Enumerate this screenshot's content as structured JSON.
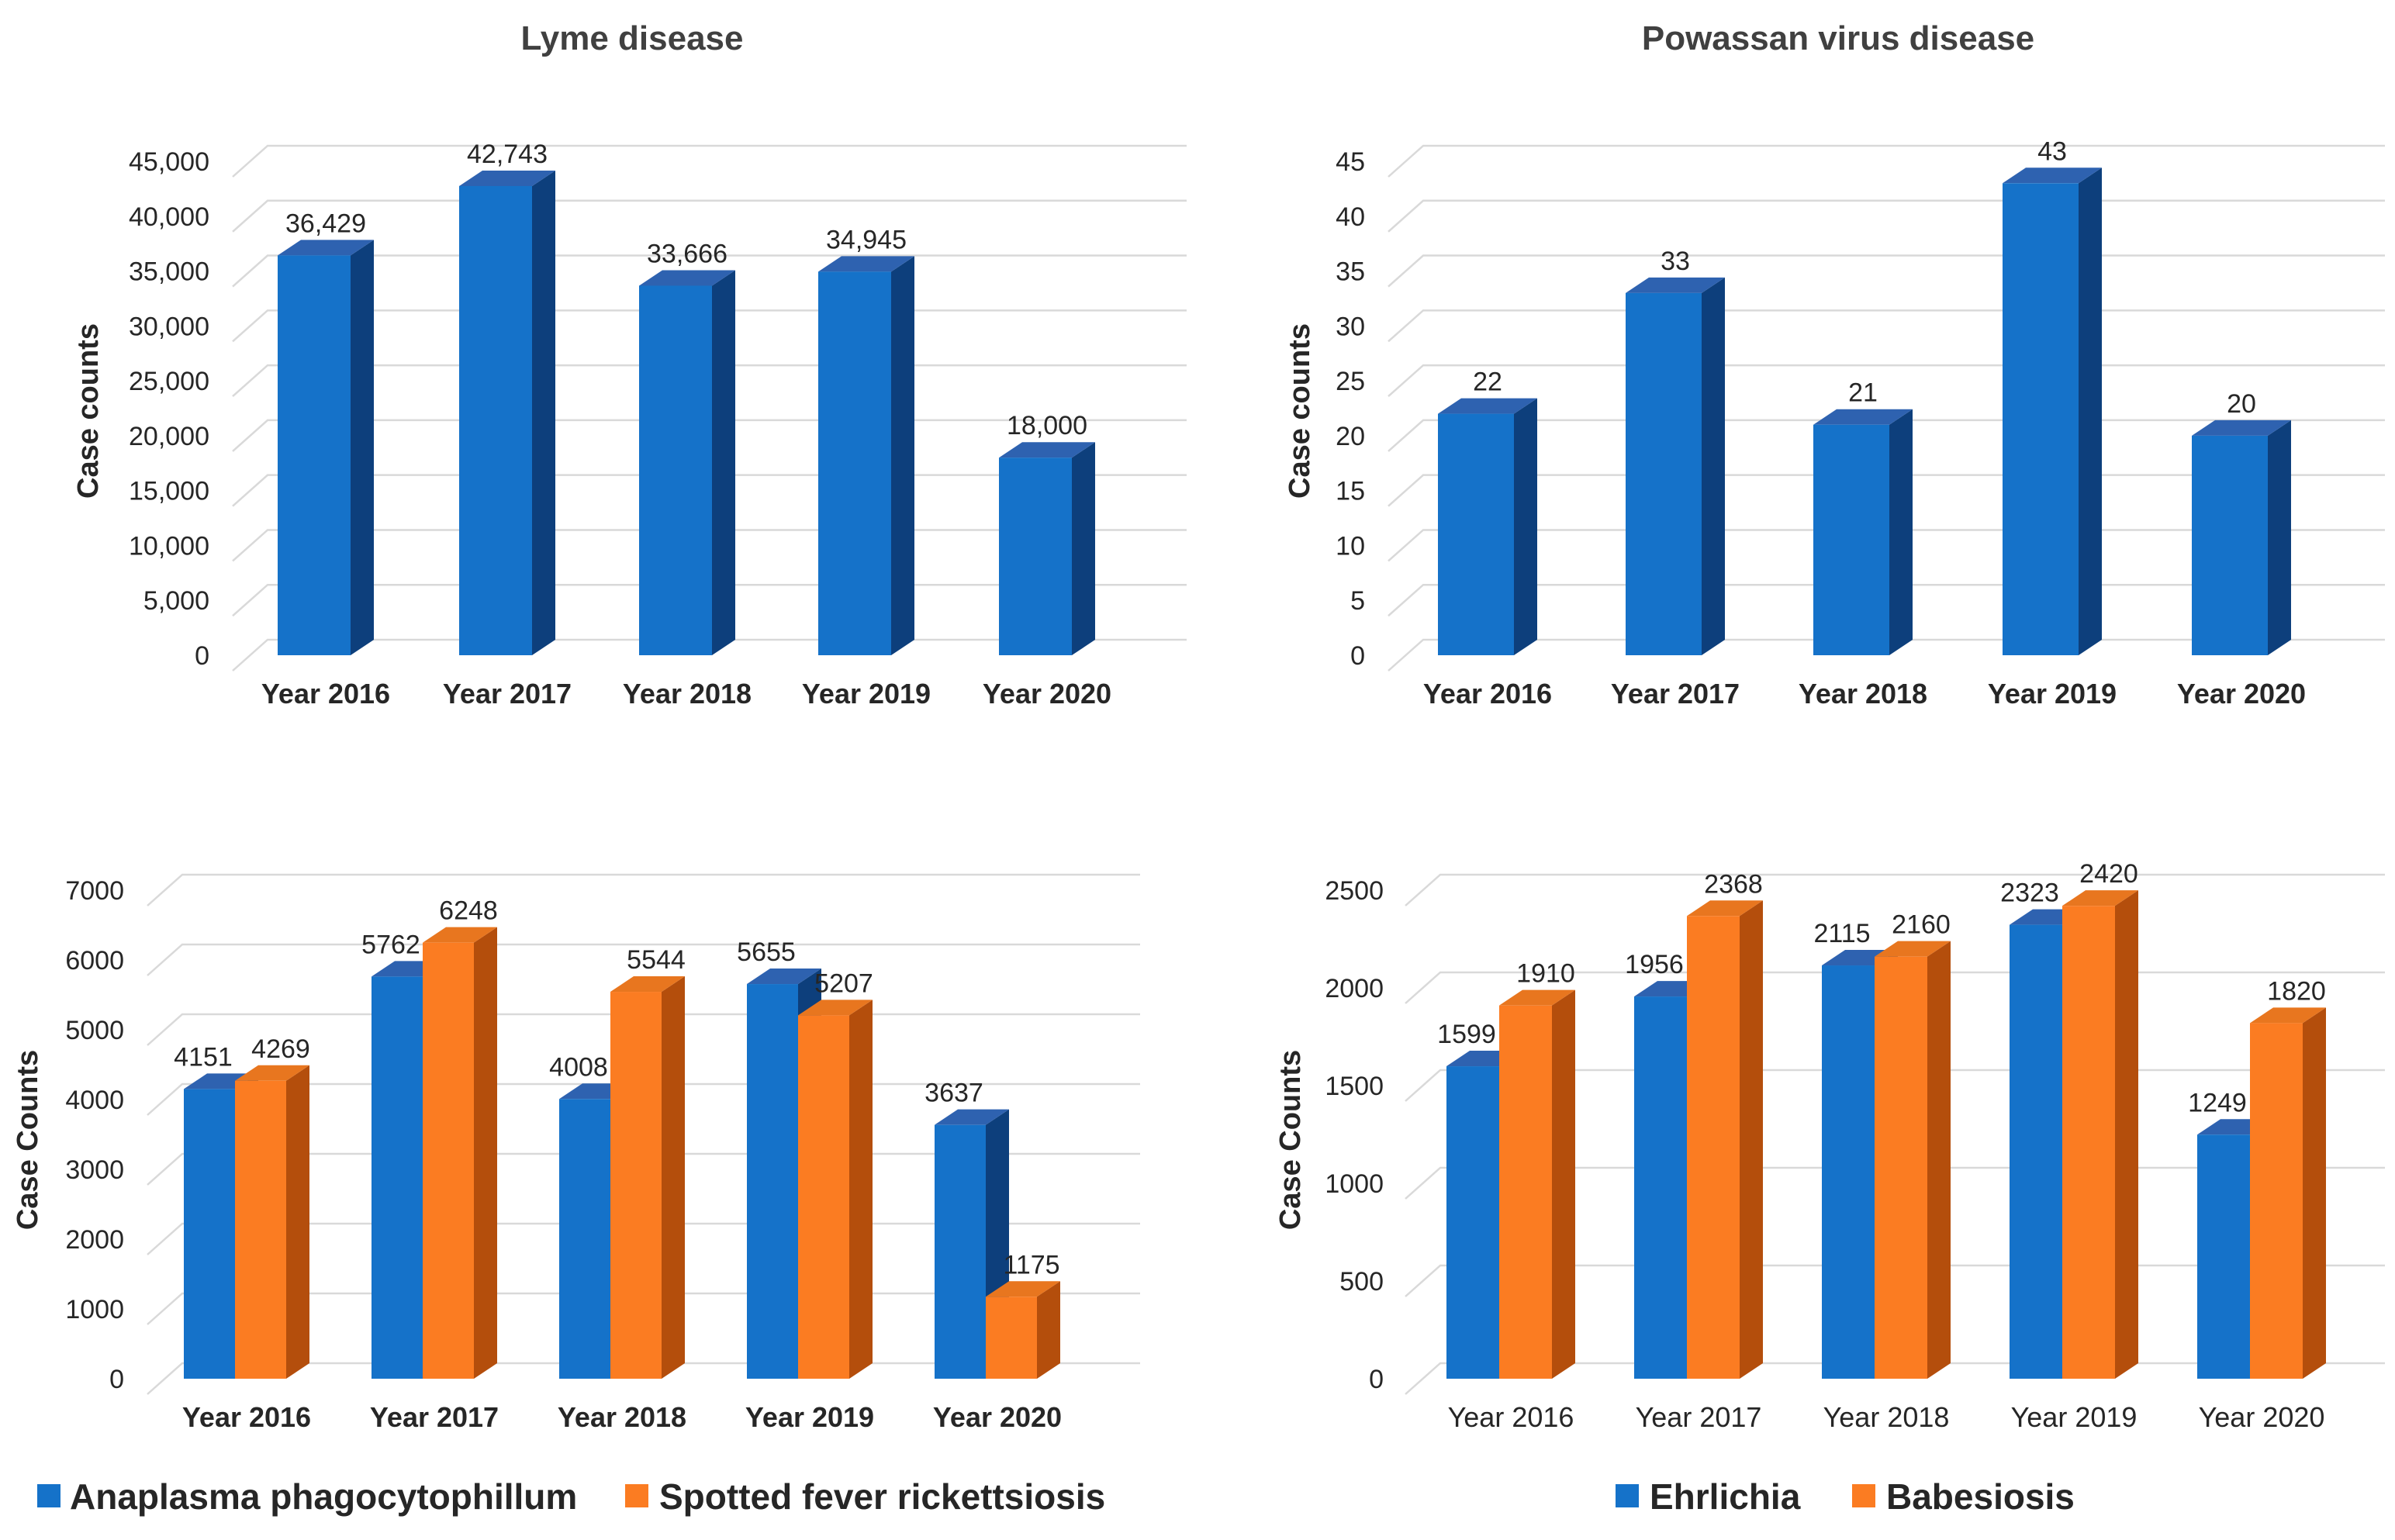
{
  "colors": {
    "blue_front": "#1572c9",
    "blue_top": "#2e62b0",
    "blue_side": "#0d3f7c",
    "orange_front": "#fb7c22",
    "orange_top": "#e8761f",
    "orange_side": "#b44e0c"
  },
  "chart_data": [
    {
      "type": "bar",
      "title": "Lyme disease",
      "ylabel": "Case counts",
      "categories": [
        "Year 2016",
        "Year 2017",
        "Year 2018",
        "Year 2019",
        "Year 2020"
      ],
      "category_label_style": "bold",
      "ylim": [
        0,
        45000
      ],
      "yticks": [
        0,
        5000,
        10000,
        15000,
        20000,
        25000,
        30000,
        35000,
        40000,
        45000
      ],
      "ytick_labels": [
        "0",
        "5,000",
        "10,000",
        "15,000",
        "20,000",
        "25,000",
        "30,000",
        "35,000",
        "40,000",
        "45,000"
      ],
      "series": [
        {
          "name": "Lyme disease",
          "color": "blue",
          "values": [
            36429,
            42743,
            33666,
            34945,
            18000
          ],
          "labels": [
            "36,429",
            "42,743",
            "33,666",
            "34,945",
            "18,000"
          ]
        }
      ]
    },
    {
      "type": "bar",
      "title": "Powassan virus disease",
      "ylabel": "Case counts",
      "categories": [
        "Year 2016",
        "Year 2017",
        "Year 2018",
        "Year 2019",
        "Year 2020"
      ],
      "category_label_style": "bold",
      "ylim": [
        0,
        45
      ],
      "yticks": [
        0,
        5,
        10,
        15,
        20,
        25,
        30,
        35,
        40,
        45
      ],
      "ytick_labels": [
        "0",
        "5",
        "10",
        "15",
        "20",
        "25",
        "30",
        "35",
        "40",
        "45"
      ],
      "series": [
        {
          "name": "Powassan virus disease",
          "color": "blue",
          "values": [
            22,
            33,
            21,
            43,
            20
          ],
          "labels": [
            "22",
            "33",
            "21",
            "43",
            "20"
          ]
        }
      ]
    },
    {
      "type": "bar",
      "title": "",
      "ylabel": "Case Counts",
      "categories": [
        "Year 2016",
        "Year 2017",
        "Year 2018",
        "Year 2019",
        "Year 2020"
      ],
      "category_label_style": "bold",
      "ylim": [
        0,
        7000
      ],
      "yticks": [
        0,
        1000,
        2000,
        3000,
        4000,
        5000,
        6000,
        7000
      ],
      "ytick_labels": [
        "0",
        "1000",
        "2000",
        "3000",
        "4000",
        "5000",
        "6000",
        "7000"
      ],
      "legend_position": "bottom",
      "series": [
        {
          "name": "Anaplasma phagocytophillum",
          "color": "blue",
          "values": [
            4151,
            5762,
            4008,
            5655,
            3637
          ],
          "labels": [
            "4151",
            "5762",
            "4008",
            "5655",
            "3637"
          ]
        },
        {
          "name": "Spotted fever rickettsiosis",
          "color": "orange",
          "values": [
            4269,
            6248,
            5544,
            5207,
            1175
          ],
          "labels": [
            "4269",
            "6248",
            "5544",
            "5207",
            "1175"
          ]
        }
      ]
    },
    {
      "type": "bar",
      "title": "",
      "ylabel": "Case Counts",
      "categories": [
        "Year 2016",
        "Year 2017",
        "Year 2018",
        "Year 2019",
        "Year 2020"
      ],
      "category_label_style": "normal",
      "ylim": [
        0,
        2500
      ],
      "yticks": [
        0,
        500,
        1000,
        1500,
        2000,
        2500
      ],
      "ytick_labels": [
        "0",
        "500",
        "1000",
        "1500",
        "2000",
        "2500"
      ],
      "legend_position": "bottom",
      "series": [
        {
          "name": "Ehrlichia",
          "color": "blue",
          "values": [
            1599,
            1956,
            2115,
            2323,
            1249
          ],
          "labels": [
            "1599",
            "1956",
            "2115",
            "2323",
            "1249"
          ]
        },
        {
          "name": "Babesiosis",
          "color": "orange",
          "values": [
            1910,
            2368,
            2160,
            2420,
            1820
          ],
          "labels": [
            "1910",
            "2368",
            "2160",
            "2420",
            "1820"
          ]
        }
      ]
    }
  ]
}
